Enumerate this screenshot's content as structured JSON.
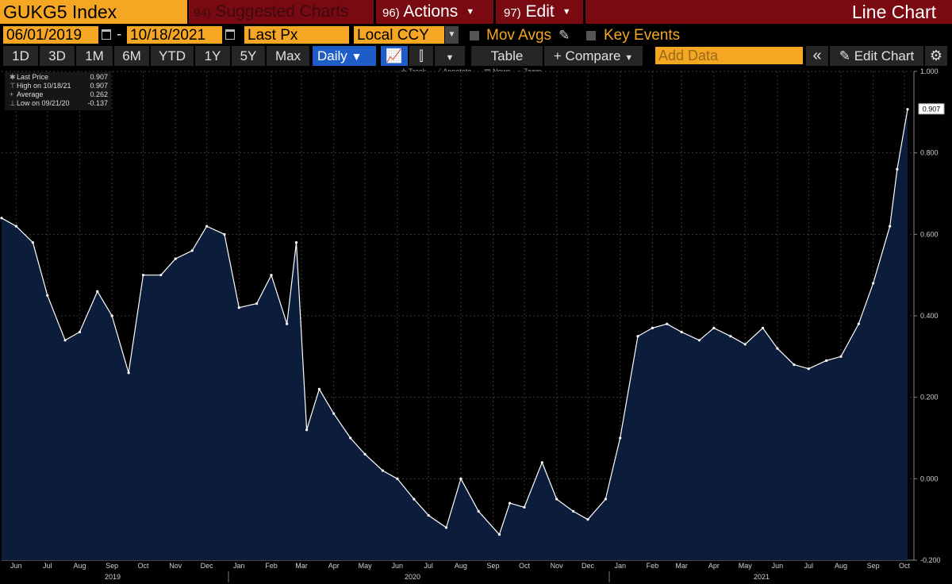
{
  "header": {
    "ticker": "GUKG5 Index",
    "suggested_num": "94)",
    "suggested_label": "Suggested Charts",
    "actions_num": "96)",
    "actions_label": "Actions",
    "edit_num": "97)",
    "edit_label": "Edit",
    "chart_kind": "Line Chart"
  },
  "controls": {
    "start_date": "06/01/2019",
    "date_sep": "-",
    "end_date": "10/18/2021",
    "field": "Last Px",
    "currency": "Local CCY",
    "mov_avgs": "Mov Avgs",
    "key_events": "Key Events",
    "add_data_placeholder": "Add Data"
  },
  "toolbar": {
    "periods": [
      "1D",
      "3D",
      "1M",
      "6M",
      "YTD",
      "1Y",
      "5Y",
      "Max"
    ],
    "frequency": "Daily",
    "table": "Table",
    "compare": "+ Compare",
    "edit_chart": "Edit Chart",
    "collapse": "«"
  },
  "subtools": {
    "track": "Track",
    "annotate": "Annotate",
    "news": "News",
    "zoom": "Zoom"
  },
  "legend": {
    "last_label": "Last Price",
    "last_value": "0.907",
    "high_label": "High on 10/18/21",
    "high_value": "0.907",
    "avg_label": "Average",
    "avg_value": "0.262",
    "low_label": "Low on 09/21/20",
    "low_value": "-0.137"
  },
  "last_tag": "0.907",
  "colors": {
    "line": "#ffffff",
    "fill": "#0b1d3a",
    "bg": "#000000",
    "accent": "#f5a623",
    "header": "#7a0a12"
  },
  "chart_data": {
    "type": "area",
    "ylim": [
      -0.2,
      1.0
    ],
    "yticks": [
      "1.000",
      "0.800",
      "0.600",
      "0.400",
      "0.200",
      "0.000",
      "-0.200"
    ],
    "months": [
      "Jun",
      "Jul",
      "Aug",
      "Sep",
      "Oct",
      "Nov",
      "Dec",
      "Jan",
      "Feb",
      "Mar",
      "Apr",
      "May",
      "Jun",
      "Jul",
      "Aug",
      "Sep",
      "Oct",
      "Nov",
      "Dec",
      "Jan",
      "Feb",
      "Mar",
      "Apr",
      "May",
      "Jun",
      "Jul",
      "Aug",
      "Sep",
      "Oct"
    ],
    "years": [
      "2019",
      "2020",
      "2021"
    ],
    "x": [
      "2019-06-01",
      "2019-06-15",
      "2019-07-01",
      "2019-07-15",
      "2019-08-01",
      "2019-08-15",
      "2019-09-01",
      "2019-09-15",
      "2019-10-01",
      "2019-10-15",
      "2019-11-01",
      "2019-11-15",
      "2019-12-01",
      "2019-12-15",
      "2020-01-01",
      "2020-01-15",
      "2020-02-01",
      "2020-02-15",
      "2020-03-01",
      "2020-03-10",
      "2020-03-20",
      "2020-04-01",
      "2020-04-15",
      "2020-05-01",
      "2020-05-15",
      "2020-06-01",
      "2020-06-15",
      "2020-07-01",
      "2020-07-15",
      "2020-08-01",
      "2020-08-15",
      "2020-09-01",
      "2020-09-21",
      "2020-10-01",
      "2020-10-15",
      "2020-11-01",
      "2020-11-15",
      "2020-12-01",
      "2020-12-15",
      "2021-01-01",
      "2021-01-15",
      "2021-02-01",
      "2021-02-15",
      "2021-03-01",
      "2021-03-15",
      "2021-04-01",
      "2021-04-15",
      "2021-05-01",
      "2021-05-15",
      "2021-06-01",
      "2021-06-15",
      "2021-07-01",
      "2021-07-15",
      "2021-08-01",
      "2021-08-15",
      "2021-09-01",
      "2021-09-15",
      "2021-10-01",
      "2021-10-08",
      "2021-10-18"
    ],
    "values": [
      0.64,
      0.62,
      0.58,
      0.45,
      0.34,
      0.36,
      0.46,
      0.4,
      0.26,
      0.5,
      0.5,
      0.54,
      0.56,
      0.62,
      0.6,
      0.42,
      0.43,
      0.5,
      0.38,
      0.58,
      0.12,
      0.22,
      0.16,
      0.1,
      0.06,
      0.02,
      0.0,
      -0.05,
      -0.09,
      -0.12,
      0.0,
      -0.08,
      -0.137,
      -0.06,
      -0.07,
      0.04,
      -0.05,
      -0.08,
      -0.1,
      -0.05,
      0.1,
      0.35,
      0.37,
      0.38,
      0.36,
      0.34,
      0.37,
      0.35,
      0.33,
      0.37,
      0.32,
      0.28,
      0.27,
      0.29,
      0.3,
      0.38,
      0.48,
      0.62,
      0.76,
      0.907
    ]
  }
}
